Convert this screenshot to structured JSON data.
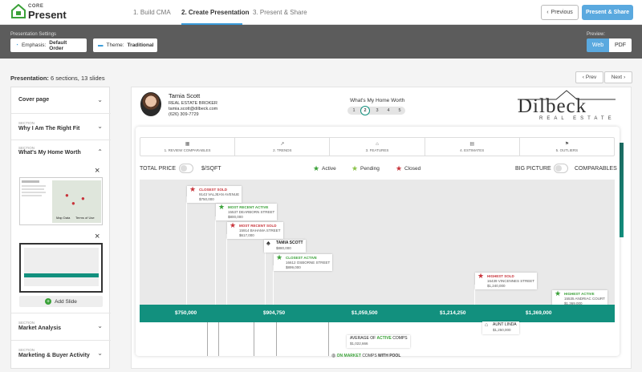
{
  "app": {
    "logo_core": "CORE",
    "logo_present": "Present"
  },
  "steps": [
    {
      "label": "1. Build CMA"
    },
    {
      "label": "2. Create Presentation"
    },
    {
      "label": "3. Present & Share"
    }
  ],
  "topbar": {
    "previous_label": "Previous",
    "present_share_label": "Present & Share"
  },
  "settings": {
    "label": "Presentation Settings",
    "emphasis_label": "Emphasis:",
    "emphasis_value": "Default Order",
    "theme_label": "Theme:",
    "theme_value": "Traditional",
    "preview_label": "Preview:",
    "preview_options": [
      "Web",
      "PDF"
    ],
    "preview_selected": "Web"
  },
  "presentation": {
    "label": "Presentation:",
    "summary": "6 sections, 13 slides",
    "prev_label": "Prev",
    "next_label": "Next"
  },
  "sidebar": {
    "sections": [
      {
        "small": "",
        "title": "Cover page"
      },
      {
        "small": "SECTION",
        "title": "Why I Am The Right Fit"
      },
      {
        "small": "SECTION",
        "title": "What's My Home Worth"
      },
      {
        "small": "SECTION",
        "title": "Market Analysis"
      },
      {
        "small": "SECTION",
        "title": "Marketing & Buyer Activity"
      }
    ],
    "thumb_map_labels": [
      "Map Data",
      "Terms of Use"
    ],
    "add_slide_label": "Add Slide"
  },
  "agent": {
    "name": "Tamia Scott",
    "title": "REAL ESTATE BROKER",
    "email": "tamia.scott@dilbeck.com",
    "phone": "(626) 309-7729"
  },
  "slide": {
    "heading": "What's My Home Worth",
    "steps": [
      "1",
      "2",
      "3",
      "4",
      "5"
    ],
    "current_step": "2"
  },
  "brand": {
    "name": "Dilbeck",
    "sub": "REAL ESTATE"
  },
  "tabs": [
    {
      "icon": "calendar-icon",
      "label": "1. REVIEW COMPARABLES"
    },
    {
      "icon": "trend-icon",
      "label": "2. TRENDS"
    },
    {
      "icon": "house-icon",
      "label": "3. FEATURES"
    },
    {
      "icon": "clipboard-icon",
      "label": "4. ESTIMATES"
    },
    {
      "icon": "flag-icon",
      "label": "5. OUTLIERS"
    }
  ],
  "filters": {
    "total_price": "TOTAL PRICE",
    "per_sqft": "$/SQFT",
    "big_picture": "BIG PICTURE",
    "comparables": "COMPARABLES"
  },
  "legend": {
    "active": "Active",
    "pending": "Pending",
    "closed": "Closed",
    "colors": {
      "active": "#3aa138",
      "pending": "#8bc34a",
      "closed": "#c8343b"
    }
  },
  "price_axis": [
    "$750,000",
    "$904,750",
    "$1,059,500",
    "$1,214,250",
    "$1,369,000"
  ],
  "tags": [
    {
      "title": "CLOSEST SOLD",
      "address": "9143 VALJEAN AVENUE",
      "price": "$750,000",
      "status": "closed"
    },
    {
      "title": "MOST RECENT ACTIVE",
      "address": "15537 DEARBORN STREET",
      "price": "$800,000",
      "status": "active"
    },
    {
      "title": "MOST RECENT SOLD",
      "address": "15914 BAHAMA STREET",
      "price": "$617,000",
      "status": "closed"
    },
    {
      "title": "TAMIA SCOTT",
      "address": "",
      "price": "$880,000",
      "status": "agent"
    },
    {
      "title": "CLOSEST ACTIVE",
      "address": "16612 OSBORNE STREET",
      "price": "$899,000",
      "status": "active"
    },
    {
      "title": "HIGHEST SOLD",
      "address": "16439 VINCENNES STREET",
      "price": "$1,240,000",
      "status": "closed"
    },
    {
      "title": "HIGHEST ACTIVE",
      "address": "15535 ANDRIAC COURT",
      "price": "$1,369,000",
      "status": "active"
    }
  ],
  "below_tags": {
    "aunt_linda": "AUNT LINDA",
    "aunt_linda_price": "$1,250,000",
    "avg_prefix": "AVERAGE OF",
    "avg_active": "ACTIVE",
    "avg_suffix": "COMPS",
    "avg_value": "$1,022,666",
    "pool_on": "ON",
    "pool_market": "MARKET",
    "pool_comps": "COMPS",
    "pool_with": "WITH POOL"
  }
}
